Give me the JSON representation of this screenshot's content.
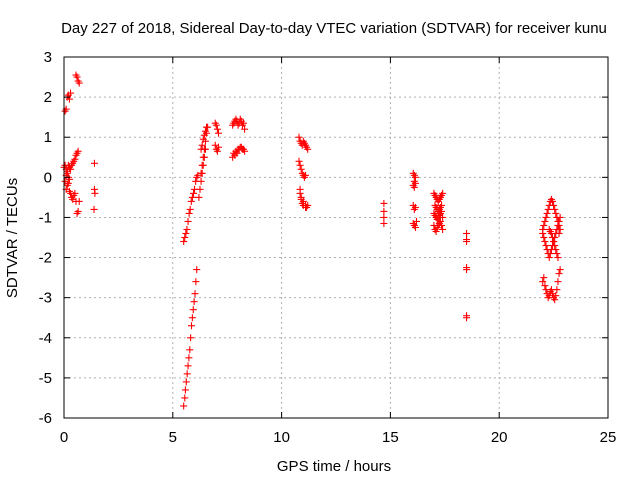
{
  "chart_data": {
    "type": "scatter",
    "title": "Day 227 of 2018, Sidereal Day-to-day VTEC variation (SDTVAR) for receiver kunu",
    "xlabel": "GPS time / hours",
    "ylabel": "SDTVAR / TECUs",
    "xlim": [
      0,
      25
    ],
    "ylim": [
      -6,
      3
    ],
    "xticks": [
      "0",
      "5",
      "10",
      "15",
      "20",
      "25"
    ],
    "yticks": [
      "-6",
      "-5",
      "-4",
      "-3",
      "-2",
      "-1",
      "0",
      "1",
      "2",
      "3"
    ],
    "grid": true,
    "marker": "plus",
    "color": "#ff0000",
    "series": [
      {
        "name": "SDTVAR",
        "x": [
          0.0,
          0.05,
          0.1,
          0.15,
          0.2,
          0.25,
          0.05,
          0.1,
          0.15,
          0.2,
          0.25,
          0.3,
          0.05,
          0.1,
          0.15,
          0.2,
          0.25,
          0.3,
          0.35,
          0.4,
          0.45,
          0.5,
          0.55,
          0.6,
          0.65,
          0.7,
          0.1,
          0.15,
          0.2,
          0.25,
          0.3,
          0.35,
          0.4,
          0.45,
          0.5,
          0.55,
          0.6,
          0.65,
          0.55,
          0.6,
          0.65,
          0.7,
          1.4,
          1.4,
          1.42,
          1.38,
          5.5,
          5.55,
          5.6,
          5.65,
          5.7,
          5.75,
          5.8,
          5.85,
          5.9,
          5.95,
          6.0,
          6.05,
          6.1,
          6.15,
          5.5,
          5.55,
          5.58,
          5.62,
          5.66,
          5.7,
          5.74,
          5.78,
          5.82,
          5.86,
          5.9,
          5.94,
          5.98,
          6.02,
          6.06,
          6.1,
          6.2,
          6.25,
          6.3,
          6.35,
          6.4,
          6.45,
          6.5,
          6.3,
          6.35,
          6.4,
          6.45,
          6.5,
          6.55,
          6.6,
          6.3,
          6.35,
          6.4,
          6.45,
          6.5,
          6.55,
          6.95,
          7.0,
          7.05,
          7.1,
          6.95,
          7.0,
          7.05,
          7.1,
          7.75,
          7.8,
          7.85,
          7.9,
          7.95,
          8.0,
          8.05,
          8.1,
          8.15,
          8.2,
          8.25,
          8.3,
          7.8,
          7.9,
          8.0,
          8.1,
          8.2,
          8.3,
          7.75,
          7.85,
          7.95,
          8.05,
          8.15,
          8.25,
          10.8,
          10.85,
          10.9,
          10.95,
          11.0,
          11.05,
          11.1,
          11.15,
          11.2,
          10.8,
          10.85,
          10.9,
          10.95,
          11.0,
          11.05,
          11.1,
          10.85,
          10.9,
          11.0,
          11.1,
          11.15,
          10.85,
          10.9,
          10.95,
          11.0,
          11.1,
          11.2,
          14.7,
          14.7,
          14.7,
          14.7,
          16.05,
          16.1,
          16.15,
          16.1,
          16.05,
          16.1,
          16.15,
          16.05,
          16.1,
          16.15,
          16.05,
          16.1,
          16.15,
          16.2,
          17.0,
          17.05,
          17.1,
          17.15,
          17.2,
          17.25,
          17.3,
          17.35,
          17.4,
          17.0,
          17.05,
          17.1,
          17.15,
          17.2,
          17.25,
          17.3,
          17.35,
          17.4,
          17.0,
          17.05,
          17.1,
          17.15,
          17.2,
          17.25,
          17.3,
          17.35,
          17.4,
          17.05,
          17.1,
          17.15,
          17.2,
          17.25,
          17.3,
          17.35,
          18.5,
          18.5,
          18.5,
          18.5,
          18.5,
          18.5,
          18.5,
          22.0,
          22.05,
          22.1,
          22.15,
          22.2,
          22.25,
          22.3,
          22.35,
          22.4,
          22.45,
          22.5,
          22.55,
          22.6,
          22.65,
          22.7,
          22.75,
          22.0,
          22.05,
          22.1,
          22.15,
          22.2,
          22.25,
          22.3,
          22.35,
          22.4,
          22.45,
          22.5,
          22.55,
          22.6,
          22.65,
          22.7,
          22.75,
          22.8,
          22.0,
          22.05,
          22.1,
          22.15,
          22.2,
          22.25,
          22.3,
          22.35,
          22.4,
          22.45,
          22.5,
          22.55,
          22.6,
          22.65,
          22.7,
          22.75,
          22.8,
          22.3,
          22.35,
          22.4,
          22.45,
          22.5,
          22.55,
          22.6,
          22.65,
          22.7,
          22.75,
          22.8
        ],
        "y": [
          0.25,
          0.3,
          0.2,
          0.15,
          0.3,
          0.25,
          1.65,
          1.7,
          2.0,
          2.05,
          1.95,
          2.1,
          -0.1,
          -0.3,
          -0.2,
          -0.15,
          -0.35,
          -0.4,
          -0.5,
          -0.55,
          -0.45,
          -0.4,
          -0.6,
          -0.9,
          -0.85,
          -0.6,
          0.05,
          0.1,
          0.0,
          -0.05,
          0.2,
          0.3,
          0.35,
          0.4,
          0.45,
          0.55,
          0.6,
          0.65,
          2.55,
          2.5,
          2.4,
          2.35,
          0.35,
          -0.3,
          -0.4,
          -0.8,
          -1.6,
          -1.5,
          -1.4,
          -1.3,
          -1.1,
          -0.9,
          -0.8,
          -0.6,
          -0.5,
          -0.4,
          -0.3,
          -0.1,
          0.0,
          0.05,
          -5.7,
          -5.5,
          -5.3,
          -5.1,
          -4.9,
          -4.7,
          -4.5,
          -4.3,
          -4.0,
          -3.7,
          -3.5,
          -3.3,
          -3.1,
          -2.9,
          -2.6,
          -2.3,
          -0.5,
          -0.3,
          -0.1,
          0.1,
          0.3,
          0.5,
          0.7,
          0.1,
          0.3,
          0.5,
          0.7,
          0.9,
          1.1,
          1.25,
          0.7,
          0.8,
          0.95,
          1.05,
          1.15,
          1.25,
          1.35,
          1.3,
          1.2,
          1.1,
          0.8,
          0.7,
          0.65,
          0.75,
          1.3,
          1.35,
          1.4,
          1.45,
          1.4,
          1.3,
          1.35,
          1.45,
          1.4,
          1.3,
          1.35,
          1.2,
          0.6,
          0.65,
          0.7,
          0.75,
          0.7,
          0.65,
          0.5,
          0.55,
          0.6,
          0.7,
          0.75,
          0.7,
          1.0,
          0.9,
          0.85,
          0.8,
          0.9,
          0.85,
          0.8,
          0.75,
          0.7,
          0.4,
          0.3,
          0.2,
          0.1,
          0.05,
          0.0,
          0.05,
          -0.4,
          -0.5,
          -0.6,
          -0.7,
          -0.75,
          -0.3,
          -0.55,
          -0.65,
          -0.7,
          -0.75,
          -0.7,
          -0.65,
          -0.85,
          -1.0,
          -1.15,
          0.1,
          0.05,
          0.0,
          -0.1,
          -0.2,
          -0.25,
          -0.15,
          -0.7,
          -0.8,
          -0.75,
          -1.15,
          -1.2,
          -1.25,
          -1.1,
          -0.4,
          -0.45,
          -0.5,
          -0.55,
          -0.6,
          -0.55,
          -0.5,
          -0.45,
          -0.4,
          -0.9,
          -0.95,
          -1.0,
          -1.05,
          -1.0,
          -0.95,
          -0.9,
          -0.85,
          -1.0,
          -1.2,
          -1.3,
          -1.35,
          -1.25,
          -1.2,
          -1.15,
          -1.1,
          -1.2,
          -1.3,
          -0.7,
          -0.75,
          -0.8,
          -0.85,
          -0.8,
          -0.75,
          -0.7,
          -1.4,
          -1.55,
          -1.6,
          -2.25,
          -2.3,
          -3.45,
          -3.5,
          -1.3,
          -1.2,
          -1.1,
          -1.0,
          -0.9,
          -0.8,
          -0.7,
          -0.6,
          -0.55,
          -0.6,
          -0.7,
          -0.8,
          -0.9,
          -1.0,
          -1.1,
          -1.2,
          -1.4,
          -1.5,
          -1.6,
          -1.7,
          -1.8,
          -1.9,
          -2.0,
          -1.9,
          -1.8,
          -1.7,
          -1.6,
          -1.5,
          -1.4,
          -1.3,
          -1.2,
          -1.1,
          -1.0,
          -2.6,
          -2.5,
          -2.7,
          -2.8,
          -2.9,
          -3.0,
          -2.95,
          -2.85,
          -2.8,
          -2.9,
          -3.0,
          -3.05,
          -2.95,
          -2.8,
          -2.6,
          -2.4,
          -2.3,
          -1.3,
          -1.35,
          -1.4,
          -1.5,
          -1.6,
          -1.7,
          -1.8,
          -1.9,
          -2.0,
          -1.4,
          -1.3
        ]
      }
    ]
  }
}
